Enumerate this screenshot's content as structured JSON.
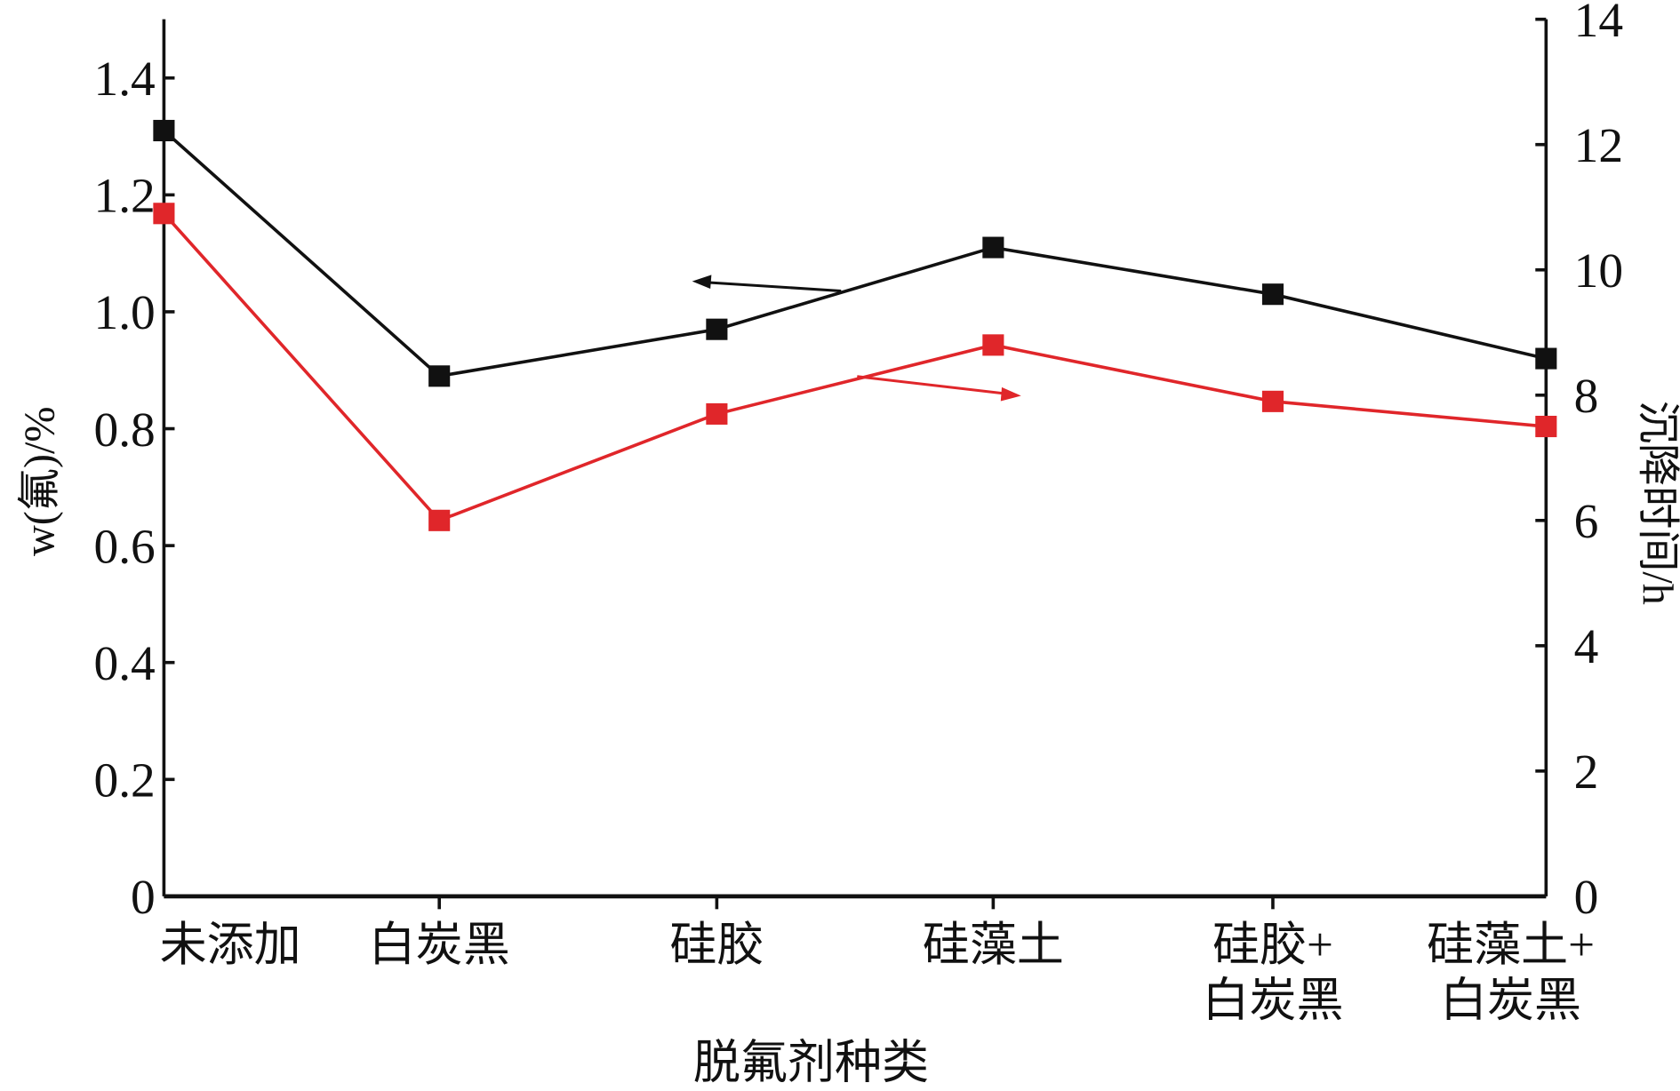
{
  "chart_data": {
    "type": "line",
    "title": "",
    "xlabel": "脱氟剂种类",
    "ylabel_left": "w(氟)/%",
    "ylabel_right": "沉降时间/h",
    "categories": [
      [
        "未添加"
      ],
      [
        "白炭黑"
      ],
      [
        "硅胶"
      ],
      [
        "硅藻土"
      ],
      [
        "硅胶+",
        "白炭黑"
      ],
      [
        "硅藻土+",
        "白炭黑"
      ]
    ],
    "ylim_left": [
      0,
      1.5
    ],
    "ylim_right": [
      0,
      14
    ],
    "yticks_left": [
      "0",
      "0.2",
      "0.4",
      "0.6",
      "0.8",
      "1.0",
      "1.2",
      "1.4"
    ],
    "yticks_right": [
      "0",
      "2",
      "4",
      "6",
      "8",
      "10",
      "12",
      "14"
    ],
    "series": [
      {
        "name": "w(氟)",
        "axis": "left",
        "color": "#111111",
        "values": [
          1.31,
          0.89,
          0.97,
          1.11,
          1.03,
          0.92
        ]
      },
      {
        "name": "沉降时间",
        "axis": "right",
        "color": "#e0262a",
        "values": [
          10.9,
          6.0,
          7.7,
          8.8,
          7.9,
          7.5
        ]
      }
    ],
    "grid": false
  }
}
